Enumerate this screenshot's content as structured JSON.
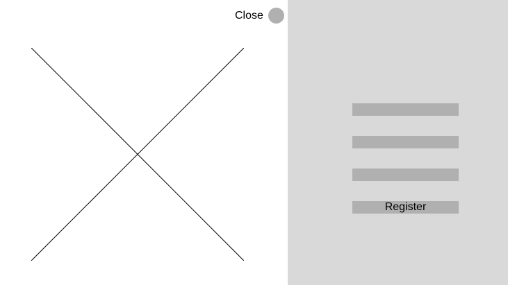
{
  "close": {
    "label": "Close",
    "icon": "circle-icon"
  },
  "image_placeholder": {
    "icon": "cross-icon"
  },
  "form": {
    "fields": [
      {
        "value": "",
        "placeholder": ""
      },
      {
        "value": "",
        "placeholder": ""
      },
      {
        "value": "",
        "placeholder": ""
      }
    ],
    "register_label": "Register"
  },
  "colors": {
    "left_background": "#ffffff",
    "right_background": "#d9d9d9",
    "field_fill": "#b0b0b0",
    "close_circle": "#b0b0b0",
    "line": "#000000"
  }
}
